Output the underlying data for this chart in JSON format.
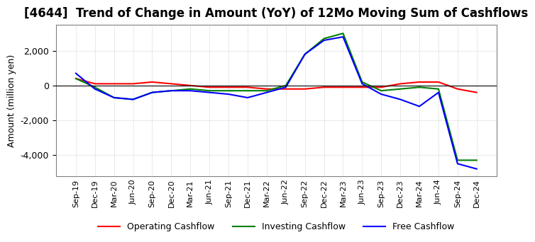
{
  "title": "[4644]  Trend of Change in Amount (YoY) of 12Mo Moving Sum of Cashflows",
  "ylabel": "Amount (million yen)",
  "ylim": [
    -5200,
    3500
  ],
  "yticks": [
    -4000,
    -2000,
    0,
    2000
  ],
  "x_labels": [
    "Sep-19",
    "Dec-19",
    "Mar-20",
    "Jun-20",
    "Sep-20",
    "Dec-20",
    "Mar-21",
    "Jun-21",
    "Sep-21",
    "Dec-21",
    "Mar-22",
    "Jun-22",
    "Sep-22",
    "Dec-22",
    "Mar-23",
    "Jun-23",
    "Sep-23",
    "Dec-23",
    "Mar-24",
    "Jun-24",
    "Sep-24",
    "Dec-24"
  ],
  "operating": [
    400,
    100,
    100,
    100,
    200,
    100,
    0,
    -100,
    -100,
    -100,
    -200,
    -200,
    -200,
    -100,
    -100,
    -100,
    -100,
    100,
    200,
    200,
    -200,
    -400
  ],
  "investing": [
    400,
    -100,
    -700,
    -800,
    -400,
    -300,
    -200,
    -300,
    -300,
    -300,
    -300,
    0,
    1800,
    2700,
    3000,
    200,
    -300,
    -200,
    -100,
    -200,
    -4300,
    -4300
  ],
  "free": [
    700,
    -200,
    -700,
    -800,
    -400,
    -300,
    -300,
    -400,
    -500,
    -700,
    -400,
    -100,
    1800,
    2600,
    2800,
    100,
    -500,
    -800,
    -1200,
    -400,
    -4500,
    -4800
  ],
  "operating_color": "#ff0000",
  "investing_color": "#008000",
  "free_color": "#0000ff",
  "grid_color": "#b0b0b0",
  "background_color": "#ffffff",
  "title_fontsize": 12,
  "legend_labels": [
    "Operating Cashflow",
    "Investing Cashflow",
    "Free Cashflow"
  ]
}
